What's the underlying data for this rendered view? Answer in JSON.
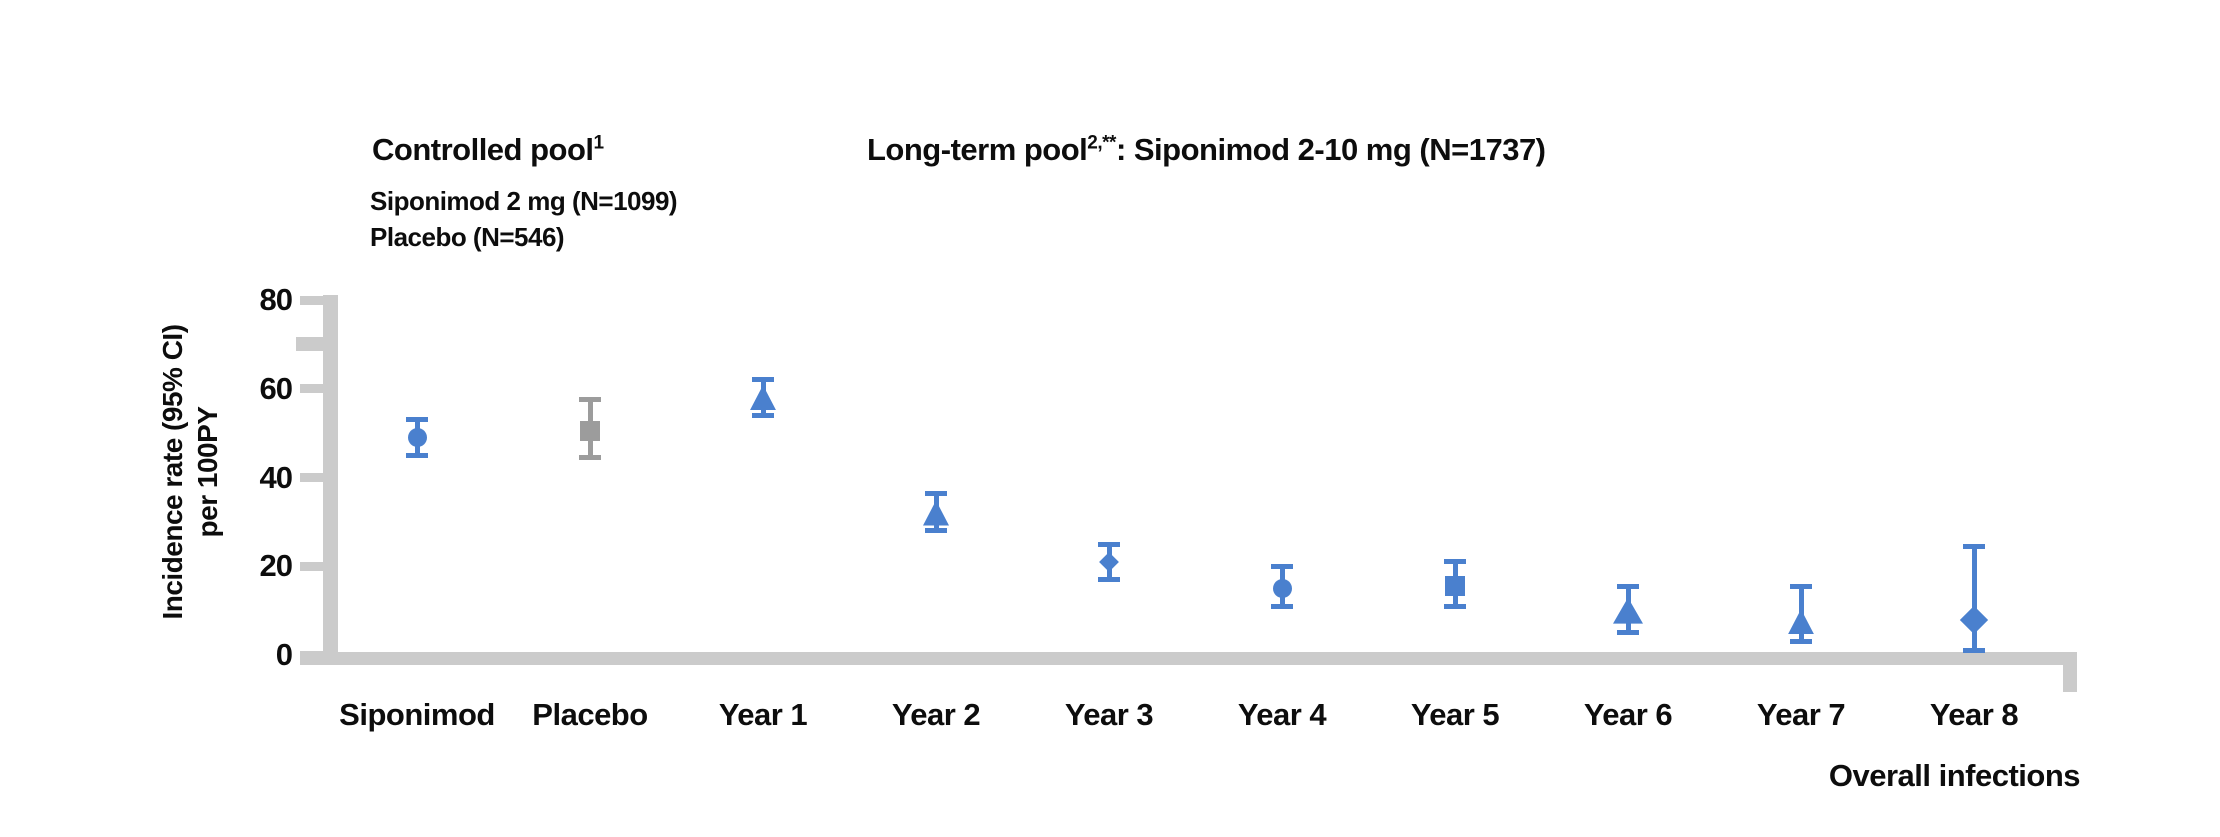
{
  "header": {
    "controlled_pool": {
      "title": "Controlled pool",
      "title_sup": "1",
      "line1": "Siponimod 2 mg (N=1099)",
      "line2": "Placebo (N=546)"
    },
    "long_term_pool": {
      "title": "Long-term pool",
      "title_sup": "2,**",
      "title_rest": ": Siponimod 2-10 mg (N=1737)"
    }
  },
  "chart_data": {
    "type": "scatter",
    "subtype": "point-estimates-with-95CI-error-bars",
    "ylabel_line1": "Incidence rate (95% CI)",
    "ylabel_line2": "per 100PY",
    "xlabel": "Overall infections",
    "ylim": [
      0,
      80
    ],
    "yticks": [
      0,
      20,
      40,
      60,
      80
    ],
    "unlabeled_tick": 70,
    "grid": false,
    "legend_position": "none",
    "colors": {
      "siponimod_blue": "#4a80ce",
      "placebo_gray": "#9c9c9c",
      "axis_gray": "#cbcbcb",
      "text_black": "#0d0d0d"
    },
    "categories": [
      "Siponimod",
      "Placebo",
      "Year 1",
      "Year 2",
      "Year 3",
      "Year 4",
      "Year 5",
      "Year 6",
      "Year 7",
      "Year 8"
    ],
    "points": [
      {
        "category": "Siponimod",
        "marker": "circle",
        "color": "blue",
        "value": 49,
        "ci_low": 45,
        "ci_high": 53
      },
      {
        "category": "Placebo",
        "marker": "square",
        "color": "gray",
        "value": 50.5,
        "ci_low": 44.5,
        "ci_high": 57.5
      },
      {
        "category": "Year 1",
        "marker": "triangle",
        "color": "blue",
        "value": 58,
        "ci_low": 54,
        "ci_high": 62
      },
      {
        "category": "Year 2",
        "marker": "triangle",
        "color": "blue",
        "value": 32,
        "ci_low": 28,
        "ci_high": 36.5
      },
      {
        "category": "Year 3",
        "marker": "diamond-small",
        "color": "blue",
        "value": 21,
        "ci_low": 17,
        "ci_high": 25
      },
      {
        "category": "Year 4",
        "marker": "circle",
        "color": "blue",
        "value": 15,
        "ci_low": 11,
        "ci_high": 20
      },
      {
        "category": "Year 5",
        "marker": "square",
        "color": "blue",
        "value": 15.5,
        "ci_low": 11,
        "ci_high": 21
      },
      {
        "category": "Year 6",
        "marker": "triangle-large",
        "color": "blue",
        "value": 10,
        "ci_low": 5,
        "ci_high": 15.5
      },
      {
        "category": "Year 7",
        "marker": "triangle",
        "color": "blue",
        "value": 7.5,
        "ci_low": 3,
        "ci_high": 15.5
      },
      {
        "category": "Year 8",
        "marker": "diamond",
        "color": "blue",
        "value": 8,
        "ci_low": 1,
        "ci_high": 24.5
      }
    ]
  }
}
